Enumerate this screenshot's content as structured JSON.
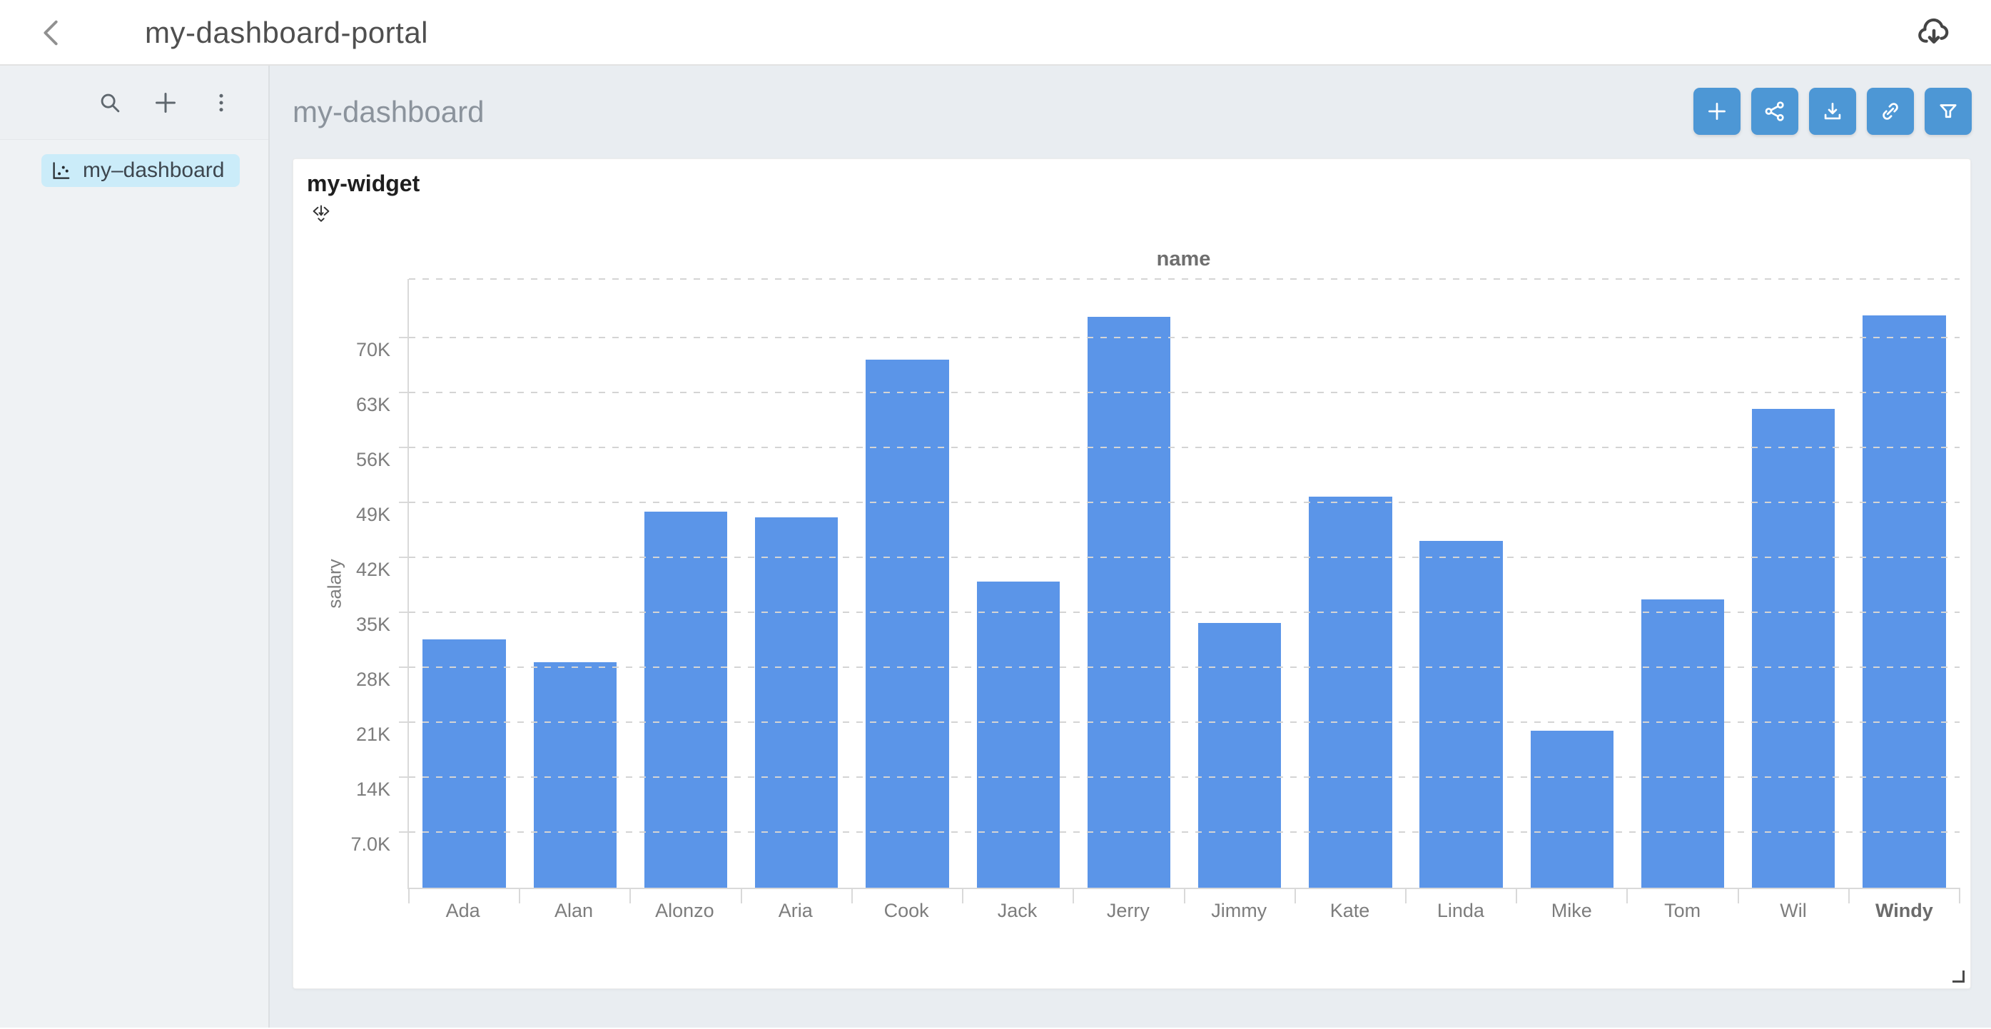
{
  "topbar": {
    "title": "my-dashboard-portal"
  },
  "sidebar": {
    "tools": [
      {
        "icon": "search"
      },
      {
        "icon": "plus"
      },
      {
        "icon": "kebab-menu"
      }
    ],
    "item": {
      "label": "my–dashboard",
      "icon": "scatter-chart"
    }
  },
  "main": {
    "title": "my-dashboard",
    "toolbar": [
      {
        "icon": "plus"
      },
      {
        "icon": "share"
      },
      {
        "icon": "download"
      },
      {
        "icon": "link"
      },
      {
        "icon": "filter"
      }
    ]
  },
  "widget": {
    "title": "my-widget"
  },
  "chart_data": {
    "type": "bar",
    "title": "name",
    "xlabel": "name",
    "ylabel": "salary",
    "categories": [
      "Ada",
      "Alan",
      "Alonzo",
      "Aria",
      "Cook",
      "Jack",
      "Jerry",
      "Jimmy",
      "Kate",
      "Linda",
      "Mike",
      "Tom",
      "Wil",
      "Windy"
    ],
    "values": [
      31600,
      28700,
      47900,
      47200,
      67200,
      39000,
      72700,
      33700,
      49800,
      44200,
      20000,
      36700,
      61000,
      72900
    ],
    "yticks": [
      "7.0K",
      "14K",
      "21K",
      "28K",
      "35K",
      "42K",
      "49K",
      "56K",
      "63K",
      "70K"
    ],
    "ytick_interval": 7000,
    "ylim": [
      0,
      77500
    ],
    "grid": "horizontal-dashed",
    "legend": "none",
    "emphasized_category": "Windy",
    "bar_color": "#5b95e8"
  },
  "colors": {
    "accent_blue": "#4d97d5",
    "bar_blue": "#5b95e8",
    "selected_item_bg": "#cbecf9",
    "main_bg": "#e9edf1",
    "sidebar_bg": "#eff2f4",
    "axis_line": "#d9d9d9",
    "grid_line": "#d4d4d4",
    "tick_text": "#7d7d7d"
  }
}
